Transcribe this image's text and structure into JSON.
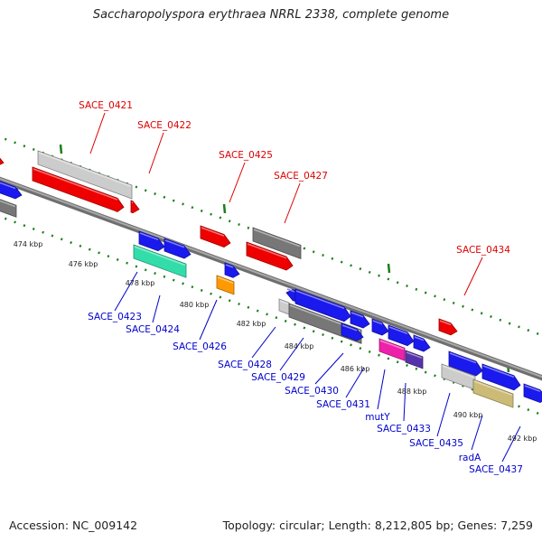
{
  "title": "Saccharopolyspora erythraea NRRL 2338, complete genome",
  "footer": {
    "accession": "Accession: NC_009142",
    "stats": "Topology: circular; Length: 8,212,805 bp; Genes: 7,259"
  },
  "colors": {
    "backbone": "#8a8a8a",
    "tick_dots": "#1a7f1a",
    "top_label": "#dd0000",
    "bottom_label": "#0000cc",
    "gene_red": "#ee0000",
    "gene_blue": "#1a1aee",
    "gene_gray": "#777777",
    "gene_lightgray": "#cccccc",
    "gene_green": "#33ddaa",
    "gene_orange": "#ff9900",
    "gene_magenta": "#ee22aa",
    "gene_purple": "#5533aa",
    "gene_khaki": "#ccbb77"
  },
  "scale_labels": [
    "474 kbp",
    "476 kbp",
    "478 kbp",
    "480 kbp",
    "482 kbp",
    "484 kbp",
    "486 kbp",
    "488 kbp",
    "490 kbp",
    "492 kbp"
  ],
  "top_labels": [
    "SACE_0421",
    "SACE_0422",
    "SACE_0425",
    "SACE_0427",
    "SACE_0434"
  ],
  "bottom_labels": [
    "SACE_0423",
    "SACE_0424",
    "SACE_0426",
    "SACE_0428",
    "SACE_0429",
    "SACE_0430",
    "SACE_0431",
    "mutY",
    "SACE_0433",
    "SACE_0435",
    "radA",
    "SACE_0437"
  ]
}
